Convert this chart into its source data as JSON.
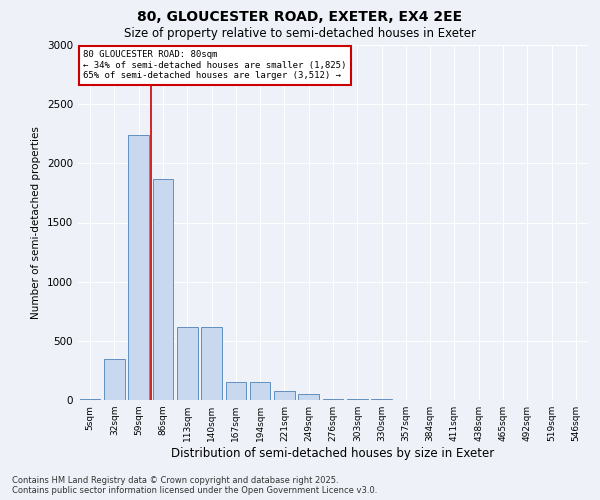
{
  "title1": "80, GLOUCESTER ROAD, EXETER, EX4 2EE",
  "title2": "Size of property relative to semi-detached houses in Exeter",
  "xlabel": "Distribution of semi-detached houses by size in Exeter",
  "ylabel": "Number of semi-detached properties",
  "categories": [
    "5sqm",
    "32sqm",
    "59sqm",
    "86sqm",
    "113sqm",
    "140sqm",
    "167sqm",
    "194sqm",
    "221sqm",
    "249sqm",
    "276sqm",
    "303sqm",
    "330sqm",
    "357sqm",
    "384sqm",
    "411sqm",
    "438sqm",
    "465sqm",
    "492sqm",
    "519sqm",
    "546sqm"
  ],
  "values": [
    5,
    350,
    2240,
    1870,
    620,
    620,
    155,
    155,
    80,
    50,
    5,
    5,
    5,
    0,
    0,
    0,
    0,
    0,
    0,
    0,
    0
  ],
  "bar_color": "#c8d8ee",
  "bar_edge_color": "#6090c0",
  "red_line_x": 2.5,
  "red_line_color": "#cc0000",
  "annotation_title": "80 GLOUCESTER ROAD: 80sqm",
  "annotation_line1": "← 34% of semi-detached houses are smaller (1,825)",
  "annotation_line2": "65% of semi-detached houses are larger (3,512) →",
  "annotation_box_color": "#cc0000",
  "ylim": [
    0,
    3000
  ],
  "yticks": [
    0,
    500,
    1000,
    1500,
    2000,
    2500,
    3000
  ],
  "footnote1": "Contains HM Land Registry data © Crown copyright and database right 2025.",
  "footnote2": "Contains public sector information licensed under the Open Government Licence v3.0.",
  "background_color": "#eef2f8",
  "grid_color": "#ffffff"
}
